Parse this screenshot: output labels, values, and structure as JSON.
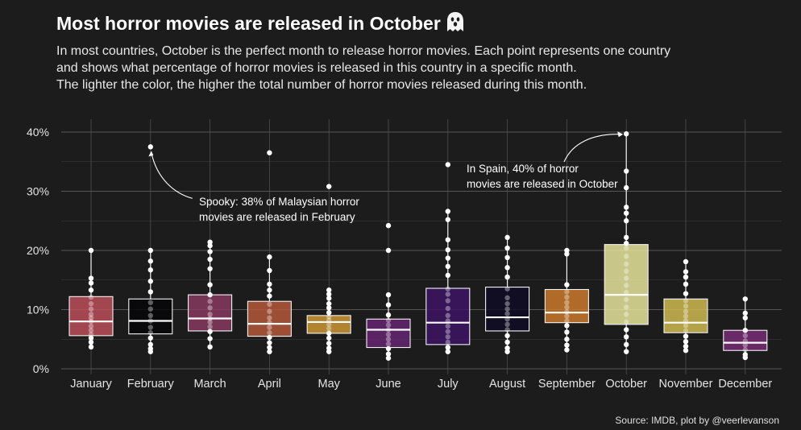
{
  "header": {
    "title": "Most horror movies are released in October",
    "subtitle_lines": [
      "In most countries, October is the perfect month to release horror movies. Each point represents one country",
      "and shows what percentage of horror movies is released in this country in a specific month.",
      "The lighter the color, the higher the total number of horror movies released during this month."
    ]
  },
  "footer": {
    "source": "Source: IMDB, plot by @veerlevanson"
  },
  "chart_data": {
    "type": "boxplot",
    "title": "Most horror movies are released in October",
    "xlabel": "",
    "ylabel": "",
    "ylim": [
      0,
      40
    ],
    "yticks": [
      0,
      10,
      20,
      30,
      40
    ],
    "ytick_labels": [
      "0%",
      "10%",
      "20%",
      "30%",
      "40%"
    ],
    "grid": true,
    "categories": [
      "January",
      "February",
      "March",
      "April",
      "May",
      "June",
      "July",
      "August",
      "September",
      "October",
      "November",
      "December"
    ],
    "boxes": [
      {
        "month": "January",
        "color": "#bf4f5a",
        "q1": 5.6,
        "median": 8.0,
        "q3": 12.2,
        "whisker_low": 3.7,
        "whisker_high": 20.0,
        "points": [
          3.7,
          4.5,
          5.2,
          5.8,
          6.5,
          7.2,
          8.0,
          8.6,
          9.2,
          10.1,
          11.0,
          12.1,
          13.3,
          14.5,
          15.3,
          20.0
        ]
      },
      {
        "month": "February",
        "color": "#050508",
        "q1": 5.9,
        "median": 8.1,
        "q3": 11.8,
        "whisker_low": 2.9,
        "whisker_high": 20.0,
        "points": [
          2.9,
          3.4,
          4.1,
          5.2,
          6.1,
          7.0,
          8.1,
          9.0,
          10.1,
          11.2,
          13.0,
          14.8,
          16.7,
          18.2,
          20.0,
          37.5
        ]
      },
      {
        "month": "March",
        "color": "#8b3a62",
        "q1": 6.4,
        "median": 8.5,
        "q3": 12.5,
        "whisker_low": 3.7,
        "whisker_high": 21.4,
        "points": [
          3.7,
          5.1,
          6.3,
          7.1,
          7.9,
          8.5,
          9.2,
          10.3,
          11.4,
          12.5,
          14.2,
          16.9,
          18.5,
          19.8,
          20.8,
          21.4
        ]
      },
      {
        "month": "April",
        "color": "#b95a3c",
        "q1": 5.5,
        "median": 7.6,
        "q3": 11.4,
        "whisker_low": 2.9,
        "whisker_high": 18.9,
        "points": [
          2.9,
          3.6,
          4.4,
          5.3,
          6.1,
          7.0,
          7.8,
          8.6,
          9.7,
          10.9,
          12.3,
          13.3,
          14.3,
          16.6,
          18.9,
          36.5
        ]
      },
      {
        "month": "May",
        "color": "#d49b35",
        "q1": 6.0,
        "median": 7.9,
        "q3": 9.0,
        "whisker_low": 2.9,
        "whisker_high": 13.3,
        "points": [
          2.9,
          3.5,
          4.3,
          5.2,
          6.0,
          6.8,
          7.5,
          8.2,
          8.8,
          9.5,
          10.3,
          11.0,
          11.9,
          12.6,
          13.3,
          30.8
        ]
      },
      {
        "month": "June",
        "color": "#662574",
        "q1": 3.6,
        "median": 6.6,
        "q3": 8.4,
        "whisker_low": 1.8,
        "whisker_high": 12.5,
        "points": [
          1.8,
          2.5,
          3.4,
          4.2,
          5.0,
          5.8,
          6.6,
          7.4,
          8.2,
          9.1,
          10.8,
          12.5,
          20.0,
          24.2
        ]
      },
      {
        "month": "July",
        "color": "#3d1465",
        "q1": 4.1,
        "median": 7.8,
        "q3": 13.6,
        "whisker_low": 2.9,
        "whisker_high": 26.6,
        "points": [
          2.9,
          3.6,
          4.5,
          5.4,
          6.3,
          7.2,
          8.1,
          9.0,
          10.2,
          11.5,
          12.6,
          13.5,
          15.8,
          17.3,
          18.7,
          20.1,
          21.8,
          25.2,
          26.6,
          34.5
        ]
      },
      {
        "month": "August",
        "color": "#0f0b26",
        "q1": 6.4,
        "median": 8.7,
        "q3": 13.8,
        "whisker_low": 2.9,
        "whisker_high": 22.2,
        "points": [
          2.9,
          3.5,
          4.5,
          5.6,
          6.6,
          7.5,
          8.4,
          9.3,
          10.1,
          11.0,
          12.0,
          13.5,
          15.5,
          17.1,
          18.8,
          20.4,
          22.2
        ]
      },
      {
        "month": "September",
        "color": "#cf7d2a",
        "q1": 7.8,
        "median": 9.5,
        "q3": 13.4,
        "whisker_low": 3.2,
        "whisker_high": 20.0,
        "points": [
          3.2,
          4.0,
          5.0,
          6.2,
          7.3,
          8.1,
          8.9,
          9.6,
          10.4,
          11.2,
          12.1,
          13.0,
          14.2,
          19.4,
          20.0
        ]
      },
      {
        "month": "October",
        "color": "#eeeda0",
        "q1": 7.5,
        "median": 12.5,
        "q3": 21.0,
        "whisker_low": 2.9,
        "whisker_high": 39.7,
        "points": [
          2.9,
          4.1,
          5.4,
          6.6,
          7.9,
          9.2,
          10.4,
          11.7,
          12.9,
          14.1,
          15.3,
          16.5,
          17.7,
          19.0,
          20.4,
          21.2,
          22.2,
          25.0,
          26.3,
          27.3,
          30.6,
          33.4,
          39.7
        ]
      },
      {
        "month": "November",
        "color": "#d4bf52",
        "q1": 6.1,
        "median": 7.8,
        "q3": 11.8,
        "whisker_low": 3.1,
        "whisker_high": 18.1,
        "points": [
          3.1,
          3.8,
          4.6,
          5.5,
          6.4,
          7.3,
          8.1,
          8.9,
          9.7,
          10.6,
          11.5,
          12.7,
          14.3,
          15.5,
          16.4,
          18.1
        ]
      },
      {
        "month": "December",
        "color": "#7a2c78",
        "q1": 3.1,
        "median": 4.4,
        "q3": 6.5,
        "whisker_low": 1.9,
        "whisker_high": 11.8,
        "points": [
          1.9,
          2.4,
          3.2,
          4.0,
          4.7,
          5.6,
          6.5,
          8.6,
          9.4,
          11.8
        ]
      }
    ],
    "annotations": [
      {
        "month": "February",
        "value": 37.5,
        "lines": [
          "Spooky: 38% of Malaysian horror",
          "movies are released in February"
        ]
      },
      {
        "month": "October",
        "value": 39.7,
        "lines": [
          "In Spain, 40% of horror",
          "movies are released in October"
        ]
      }
    ]
  }
}
